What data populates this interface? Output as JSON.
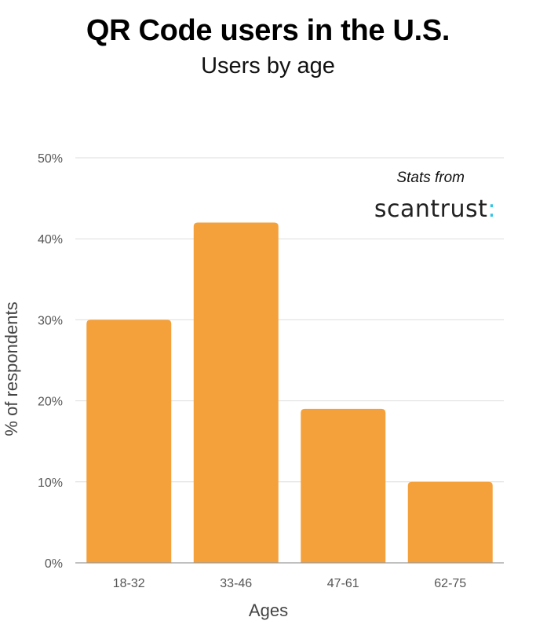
{
  "chart_data": {
    "type": "bar",
    "title": "QR Code users in the U.S.",
    "subtitle": "Users by age",
    "categories": [
      "18-32",
      "33-46",
      "47-61",
      "62-75"
    ],
    "values": [
      30,
      42,
      19,
      10
    ],
    "unit": "%",
    "xlabel": "Ages",
    "ylabel": "% of respondents",
    "ylim": [
      0,
      50
    ],
    "yticks": [
      0,
      10,
      20,
      30,
      40,
      50
    ],
    "ytick_labels": [
      "0%",
      "10%",
      "20%",
      "30%",
      "40%",
      "50%"
    ],
    "grid": true,
    "bar_color": "#F5A13B",
    "annotation": {
      "text": "Stats from",
      "brand": "scantrust",
      "brand_accent": ":",
      "accent_color": "#2EC4E6",
      "position": "top-right"
    }
  }
}
